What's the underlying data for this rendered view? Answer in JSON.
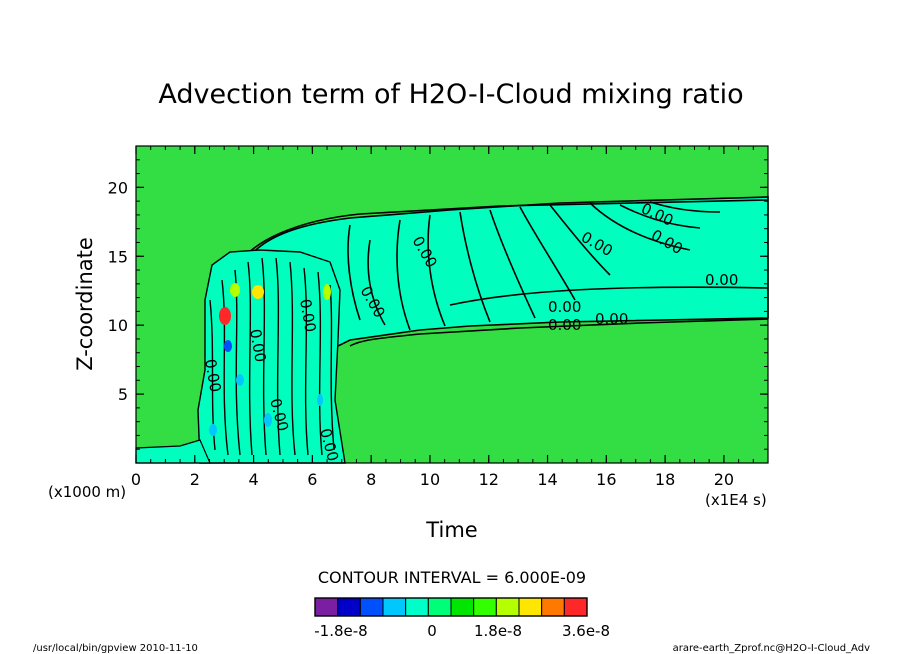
{
  "chart_data": {
    "type": "contour",
    "title": "Advection term of H2O-I-Cloud mixing ratio",
    "xlabel": "Time",
    "ylabel": "Z-coordinate",
    "x_unit": "(x1E4 s)",
    "y_unit": "(x1000 m)",
    "xlim": [
      0,
      21.5
    ],
    "ylim": [
      0,
      23
    ],
    "x_ticks": [
      0,
      2,
      4,
      6,
      8,
      10,
      12,
      14,
      16,
      18,
      20
    ],
    "y_ticks": [
      5,
      10,
      15,
      20
    ],
    "contour_labels": [
      "0.00",
      "0.00",
      "0.00",
      "0.00",
      "0.00",
      "0.00",
      "0.00",
      "0.00",
      "0.00",
      "0.00",
      "0.00",
      "0.00",
      "0.00",
      "0.00"
    ],
    "contour_interval_text": "CONTOUR INTERVAL = 6.000E-09",
    "colorbar": {
      "colors": [
        "#7a1fa2",
        "#0000c8",
        "#0050ff",
        "#00c8ff",
        "#00ffc8",
        "#00ff78",
        "#00e600",
        "#32ff00",
        "#b4ff00",
        "#ffe600",
        "#ff7800",
        "#ff2828"
      ],
      "labels": [
        "-1.8e-8",
        "0",
        "1.8e-8",
        "3.6e-8"
      ]
    },
    "background_color": "#33dd44",
    "band_color": "#00ffbf"
  },
  "footer": {
    "left": "/usr/local/bin/gpview  2010-11-10",
    "right": "arare-earth_Zprof.nc@H2O-I-Cloud_Adv"
  }
}
